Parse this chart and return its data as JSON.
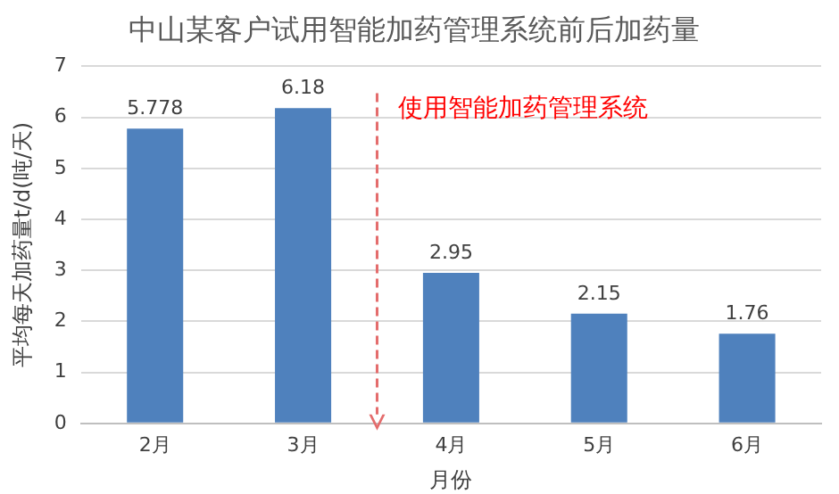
{
  "chart_data": {
    "type": "bar",
    "title": "中山某客户试用智能加药管理系统前后加药量",
    "xlabel": "月份",
    "ylabel": "平均每天加药量t/d(吨/天)",
    "categories": [
      "2月",
      "3月",
      "4月",
      "5月",
      "6月"
    ],
    "values": [
      5.778,
      6.18,
      2.95,
      2.15,
      1.76
    ],
    "color": "#4f81bd",
    "ylim": [
      0,
      7
    ],
    "yticks": [
      0,
      1,
      2,
      3,
      4,
      5,
      6,
      7
    ],
    "grid": "y",
    "data_labels": true,
    "annotations": [
      "使用智能加药管理系统"
    ]
  }
}
